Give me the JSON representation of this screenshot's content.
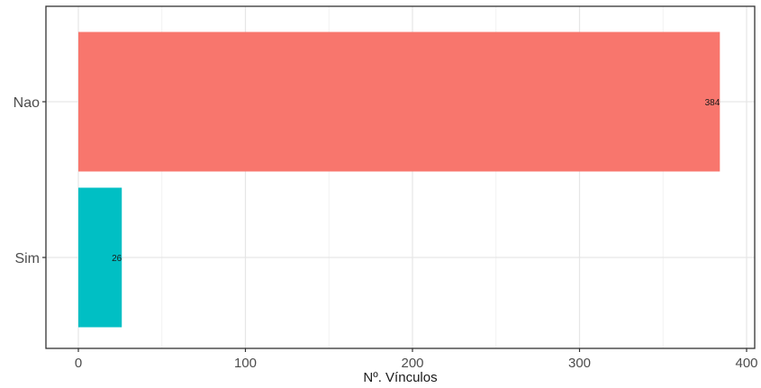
{
  "chart_data": {
    "type": "bar",
    "orientation": "horizontal",
    "categories": [
      "Nao",
      "Sim"
    ],
    "values": [
      384,
      26
    ],
    "data_labels": [
      "384",
      "26"
    ],
    "colors": [
      "#f8766d",
      "#00bfc4"
    ],
    "xlabel": "Nº. Vínculos",
    "ylabel": "",
    "xlim": [
      0,
      400
    ],
    "x_ticks": [
      0,
      100,
      200,
      300,
      400
    ],
    "x_tick_labels": [
      "0",
      "100",
      "200",
      "300",
      "400"
    ],
    "grid": true,
    "legend": "none"
  }
}
